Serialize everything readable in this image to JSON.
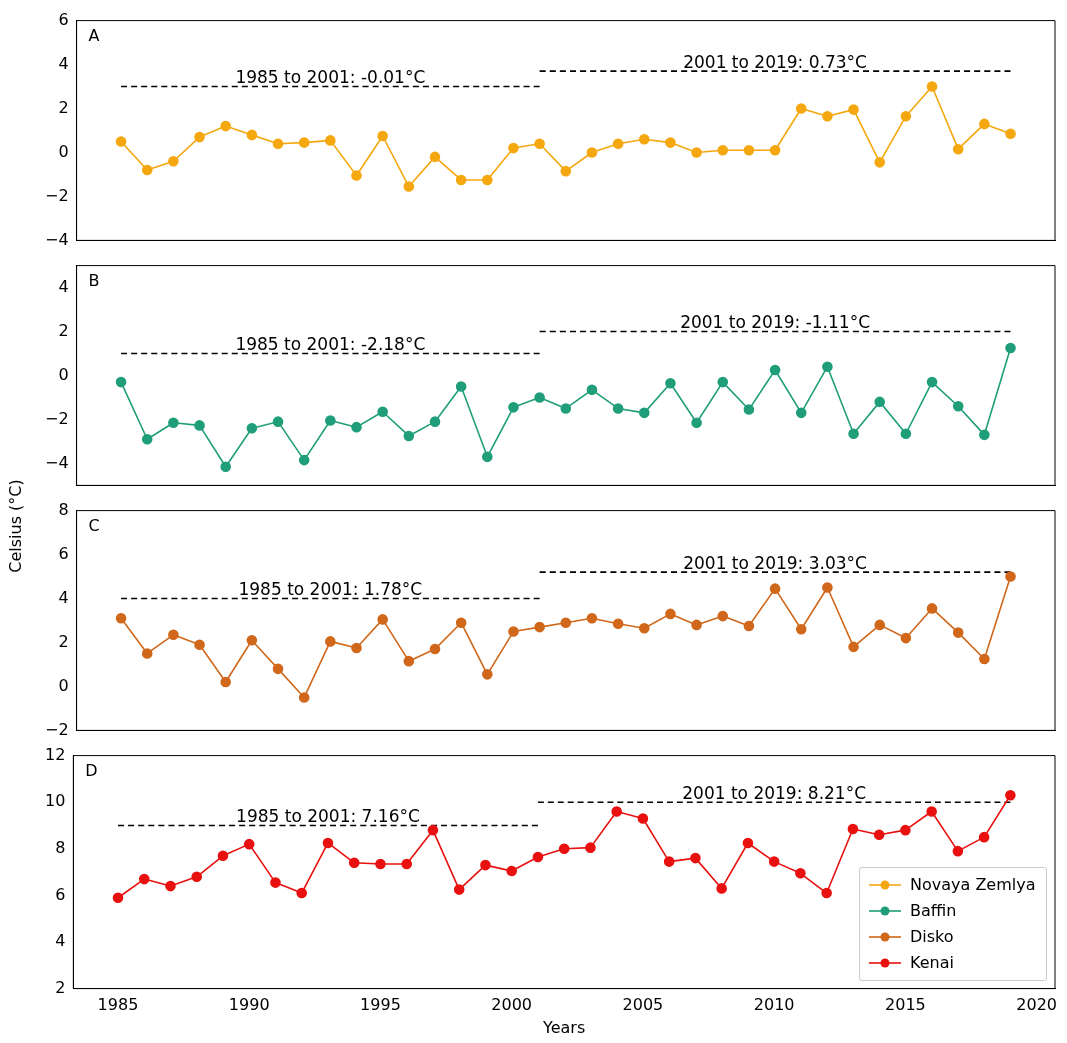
{
  "chart_data": [
    {
      "type": "line",
      "annotations": [
        "A"
      ],
      "x": [
        1985,
        1986,
        1987,
        1988,
        1989,
        1990,
        1991,
        1992,
        1993,
        1994,
        1995,
        1996,
        1997,
        1998,
        1999,
        2000,
        2001,
        2002,
        2003,
        2004,
        2005,
        2006,
        2007,
        2008,
        2009,
        2010,
        2011,
        2012,
        2013,
        2014,
        2015,
        2016,
        2017,
        2018,
        2019
      ],
      "xlim": [
        1983.3,
        2020.7
      ],
      "ylim": [
        -4,
        6
      ],
      "yticks": [
        -4,
        -2,
        0,
        2,
        4,
        6
      ],
      "tick_labels": "y",
      "marker": "circle",
      "series": [
        {
          "name": "Novaya Zemlya",
          "color": "#f5a70f",
          "values": [
            0.5,
            -0.8,
            -0.4,
            0.7,
            1.2,
            0.8,
            0.4,
            0.45,
            0.55,
            -1.05,
            0.75,
            -1.55,
            -0.2,
            -1.25,
            -1.25,
            0.2,
            0.4,
            -0.85,
            0.0,
            0.4,
            0.6,
            0.45,
            0.0,
            0.1,
            0.1,
            0.1,
            2.0,
            1.65,
            1.95,
            -0.45,
            1.65,
            3.0,
            0.15,
            1.3,
            0.85
          ]
        },
        {
          "type": "line",
          "name": "1985 to 2001: -0.01°C",
          "color": "#000000",
          "line_style": "dashed",
          "marker": "none",
          "x": [
            1985,
            2001
          ],
          "values": [
            3.0,
            3.0
          ]
        },
        {
          "type": "line",
          "name": "2001 to 2019: 0.73°C",
          "color": "#000000",
          "line_style": "dashed",
          "marker": "none",
          "x": [
            2001,
            2019
          ],
          "values": [
            3.7,
            3.7
          ]
        }
      ]
    },
    {
      "type": "line",
      "annotations": [
        "B"
      ],
      "x": [
        1985,
        1986,
        1987,
        1988,
        1989,
        1990,
        1991,
        1992,
        1993,
        1994,
        1995,
        1996,
        1997,
        1998,
        1999,
        2000,
        2001,
        2002,
        2003,
        2004,
        2005,
        2006,
        2007,
        2008,
        2009,
        2010,
        2011,
        2012,
        2013,
        2014,
        2015,
        2016,
        2017,
        2018,
        2019
      ],
      "xlim": [
        1983.3,
        2020.7
      ],
      "ylim": [
        -5,
        5
      ],
      "yticks": [
        -4,
        -2,
        0,
        2,
        4
      ],
      "tick_labels": "y",
      "marker": "circle",
      "series": [
        {
          "name": "Baffin",
          "color": "#1f9e79",
          "values": [
            -0.3,
            -2.9,
            -2.15,
            -2.27,
            -4.15,
            -2.4,
            -2.1,
            -3.85,
            -2.05,
            -2.35,
            -1.65,
            -2.75,
            -2.1,
            -0.5,
            -3.7,
            -1.45,
            -1.0,
            -1.5,
            -0.65,
            -1.5,
            -1.7,
            -0.35,
            -2.15,
            -0.3,
            -1.55,
            0.25,
            -1.7,
            0.4,
            -2.65,
            -1.2,
            -2.65,
            -0.3,
            -1.4,
            -2.7,
            1.25
          ]
        },
        {
          "type": "line",
          "name": "1985 to 2001: -2.18°C",
          "color": "#000000",
          "line_style": "dashed",
          "marker": "none",
          "x": [
            1985,
            2001
          ],
          "values": [
            1.0,
            1.0
          ]
        },
        {
          "type": "line",
          "name": "2001 to 2019: -1.11°C",
          "color": "#000000",
          "line_style": "dashed",
          "marker": "none",
          "x": [
            2001,
            2019
          ],
          "values": [
            2.0,
            2.0
          ]
        }
      ]
    },
    {
      "type": "line",
      "ylabel": "Celsius (°C)",
      "annotations": [
        "C"
      ],
      "x": [
        1985,
        1986,
        1987,
        1988,
        1989,
        1990,
        1991,
        1992,
        1993,
        1994,
        1995,
        1996,
        1997,
        1998,
        1999,
        2000,
        2001,
        2002,
        2003,
        2004,
        2005,
        2006,
        2007,
        2008,
        2009,
        2010,
        2011,
        2012,
        2013,
        2014,
        2015,
        2016,
        2017,
        2018,
        2019
      ],
      "xlim": [
        1983.3,
        2020.7
      ],
      "ylim": [
        -2,
        8
      ],
      "yticks": [
        -2,
        0,
        2,
        4,
        6,
        8
      ],
      "tick_labels": "y",
      "marker": "circle",
      "series": [
        {
          "name": "Disko",
          "color": "#d0671a",
          "values": [
            3.1,
            1.5,
            2.35,
            1.9,
            0.2,
            2.1,
            0.8,
            -0.5,
            2.05,
            1.75,
            3.05,
            1.15,
            1.7,
            2.9,
            0.55,
            2.5,
            2.7,
            2.9,
            3.1,
            2.85,
            2.65,
            3.3,
            2.8,
            3.2,
            2.75,
            4.45,
            2.6,
            4.5,
            1.8,
            2.8,
            2.2,
            3.55,
            2.45,
            1.25,
            5.0
          ]
        },
        {
          "type": "line",
          "name": "1985 to 2001: 1.78°C",
          "color": "#000000",
          "line_style": "dashed",
          "marker": "none",
          "x": [
            1985,
            2001
          ],
          "values": [
            4.0,
            4.0
          ]
        },
        {
          "type": "line",
          "name": "2001 to 2019: 3.03°C",
          "color": "#000000",
          "line_style": "dashed",
          "marker": "none",
          "x": [
            2001,
            2019
          ],
          "values": [
            5.2,
            5.2
          ]
        }
      ]
    },
    {
      "type": "line",
      "xlabel": "Years",
      "annotations": [
        "D"
      ],
      "x": [
        1985,
        1986,
        1987,
        1988,
        1989,
        1990,
        1991,
        1992,
        1993,
        1994,
        1995,
        1996,
        1997,
        1998,
        1999,
        2000,
        2001,
        2002,
        2003,
        2004,
        2005,
        2006,
        2007,
        2008,
        2009,
        2010,
        2011,
        2012,
        2013,
        2014,
        2015,
        2016,
        2017,
        2018,
        2019
      ],
      "xlim": [
        1983.3,
        2020.7
      ],
      "xticks": [
        1985,
        1990,
        1995,
        2000,
        2005,
        2010,
        2015,
        2020
      ],
      "ylim": [
        2,
        12
      ],
      "yticks": [
        2,
        4,
        6,
        8,
        10,
        12
      ],
      "marker": "circle",
      "legend": "bottom right",
      "series": [
        {
          "name": "Kenai",
          "color": "#e8110f",
          "values": [
            5.9,
            6.7,
            6.4,
            6.8,
            7.7,
            8.2,
            6.55,
            6.1,
            8.25,
            7.4,
            7.35,
            7.35,
            8.8,
            6.25,
            7.3,
            7.05,
            7.65,
            8.0,
            8.05,
            9.6,
            9.3,
            7.45,
            7.6,
            6.3,
            8.25,
            7.45,
            6.95,
            6.1,
            8.85,
            8.6,
            8.8,
            9.6,
            7.9,
            8.5,
            10.3
          ]
        },
        {
          "type": "line",
          "name": "1985 to 2001: 7.16°C",
          "color": "#000000",
          "line_style": "dashed",
          "marker": "none",
          "x": [
            1985,
            2001
          ],
          "values": [
            9.0,
            9.0
          ]
        },
        {
          "type": "line",
          "name": "2001 to 2019: 8.21°C",
          "color": "#000000",
          "line_style": "dashed",
          "marker": "none",
          "x": [
            2001,
            2019
          ],
          "values": [
            10.0,
            10.0
          ]
        }
      ]
    }
  ]
}
